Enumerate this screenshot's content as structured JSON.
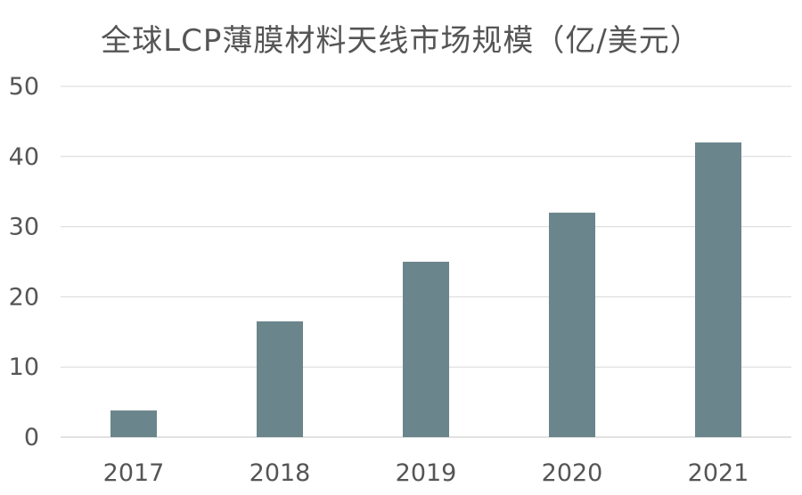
{
  "chart_data": {
    "type": "bar",
    "title": "全球LCP薄膜材料天线市场规模（亿/美元）",
    "categories": [
      "2017",
      "2018",
      "2019",
      "2020",
      "2021"
    ],
    "values": [
      3.8,
      16.5,
      25,
      32,
      42
    ],
    "ylim": [
      0,
      50
    ],
    "yticks": [
      0,
      10,
      20,
      30,
      40,
      50
    ],
    "grid": true,
    "bar_color": "#6b858c",
    "grid_color": "#d9d9d9",
    "text_color": "#555555"
  }
}
